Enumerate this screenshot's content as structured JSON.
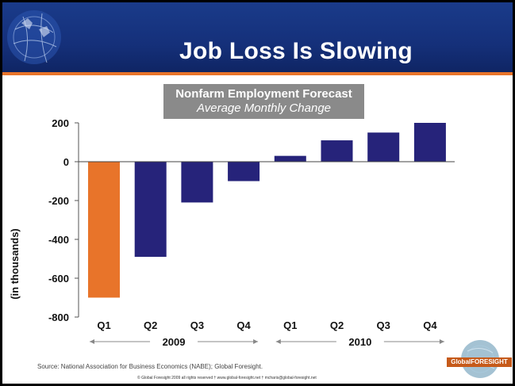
{
  "slide": {
    "title": "Job Loss Is Slowing",
    "source": "Source: National Association for Business Economics (NABE); Global Foresight.",
    "footer": "© Global Foresight 2009 all rights reserved  † www.global-foresight.net  † mcharis@global-foresight.net",
    "logo_text": "GlobalFORESIGHT",
    "header_color": "#1a3b8a",
    "accent_color": "#e8742a"
  },
  "chart_data": {
    "type": "bar",
    "title": "Nonfarm Employment Forecast",
    "subtitle": "Average Monthly Change",
    "ylabel": "(in thousands)",
    "xlabel": "",
    "ylim": [
      -800,
      200
    ],
    "yticks": [
      200,
      0,
      -200,
      -400,
      -600,
      -800
    ],
    "categories": [
      "Q1",
      "Q2",
      "Q3",
      "Q4",
      "Q1",
      "Q2",
      "Q3",
      "Q4"
    ],
    "groups": [
      {
        "label": "2009",
        "categories": [
          "Q1",
          "Q2",
          "Q3",
          "Q4"
        ]
      },
      {
        "label": "2010",
        "categories": [
          "Q1",
          "Q2",
          "Q3",
          "Q4"
        ]
      }
    ],
    "values": [
      -700,
      -490,
      -210,
      -100,
      30,
      110,
      150,
      200
    ],
    "bar_colors": [
      "#e8742a",
      "#26237a",
      "#26237a",
      "#26237a",
      "#26237a",
      "#26237a",
      "#26237a",
      "#26237a"
    ],
    "grid": false,
    "legend": "none"
  }
}
